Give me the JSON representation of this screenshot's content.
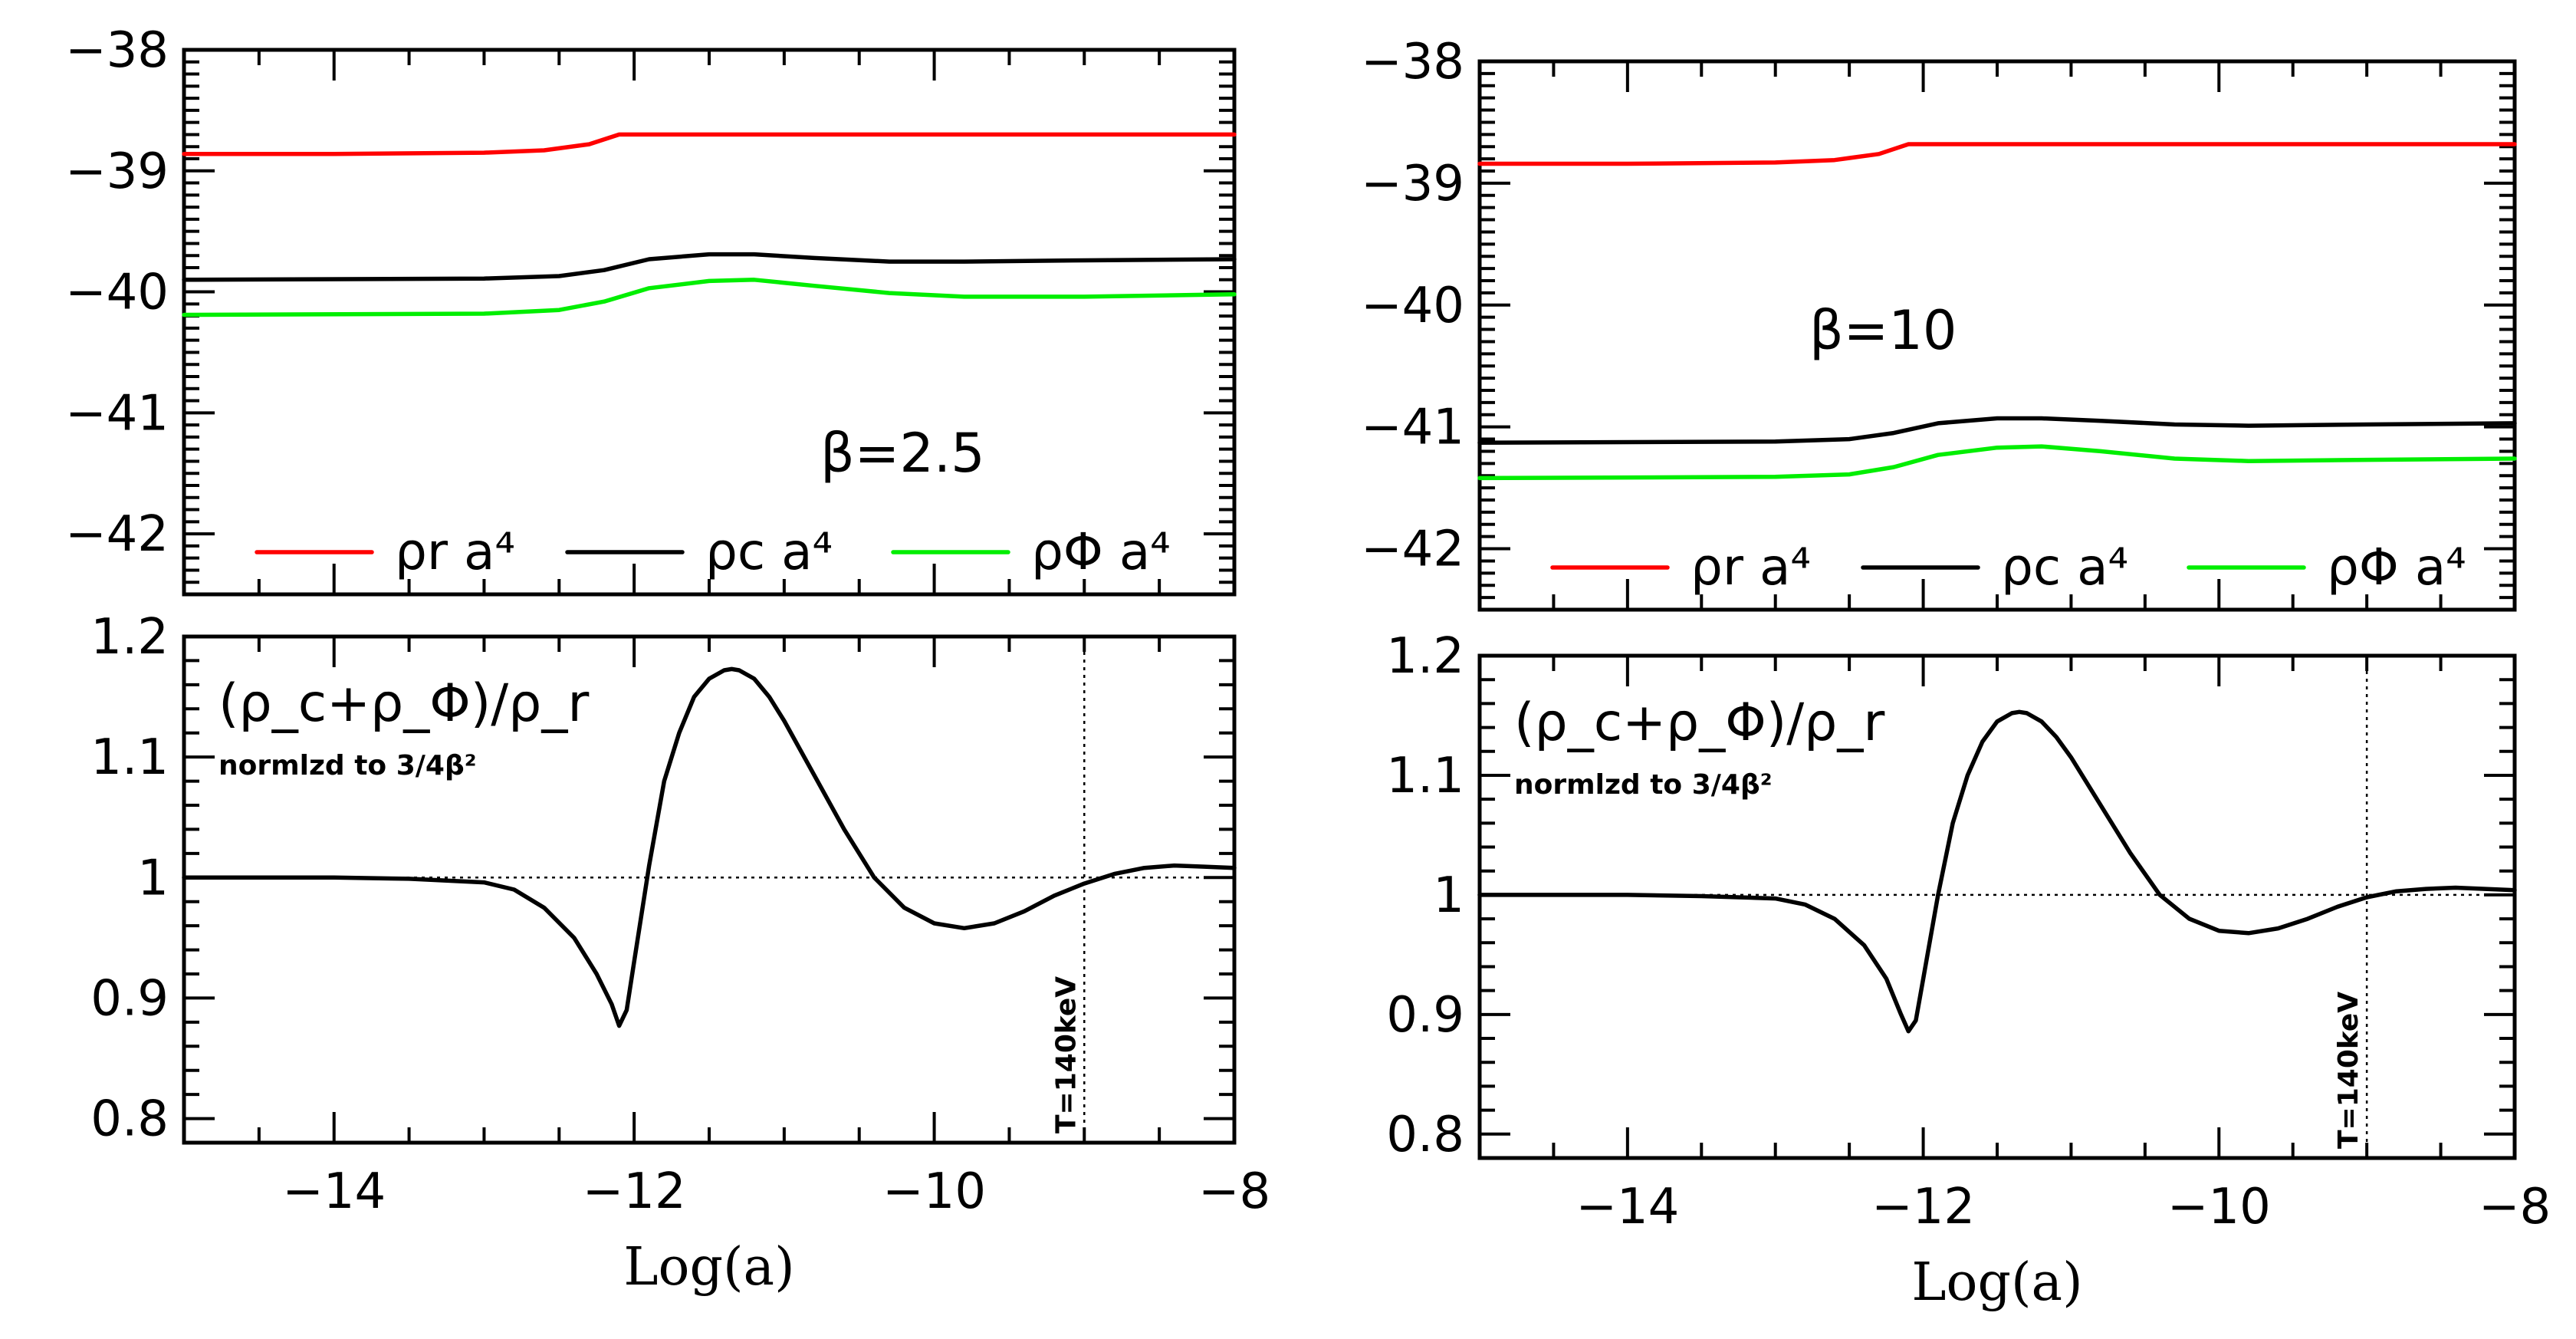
{
  "chart_data": [
    {
      "type": "line",
      "panel": "left-top",
      "title": "",
      "xlabel": "",
      "ylabel": "",
      "xlim": [
        -15,
        -8
      ],
      "ylim": [
        -42.5,
        -38
      ],
      "yticks": [
        "-42",
        "-41",
        "-40",
        "-39",
        "-38"
      ],
      "annotation": "β=2.5",
      "series": [
        {
          "name": "ρ_r a^4",
          "color": "#ff0000",
          "x": [
            -15,
            -14,
            -13,
            -12.6,
            -12.3,
            -12.1,
            -11.5,
            -10,
            -9,
            -8
          ],
          "y": [
            -38.86,
            -38.86,
            -38.85,
            -38.83,
            -38.78,
            -38.7,
            -38.7,
            -38.7,
            -38.7,
            -38.7
          ]
        },
        {
          "name": "ρ_c a^4",
          "color": "#000000",
          "x": [
            -15,
            -13,
            -12.5,
            -12.2,
            -11.9,
            -11.5,
            -11.2,
            -10.8,
            -10.3,
            -9.8,
            -9,
            -8
          ],
          "y": [
            -39.9,
            -39.89,
            -39.87,
            -39.82,
            -39.73,
            -39.69,
            -39.69,
            -39.72,
            -39.75,
            -39.75,
            -39.74,
            -39.73
          ]
        },
        {
          "name": "ρ_Φ a^4",
          "color": "#00ee00",
          "x": [
            -15,
            -13,
            -12.5,
            -12.2,
            -11.9,
            -11.5,
            -11.2,
            -10.8,
            -10.3,
            -9.8,
            -9,
            -8
          ],
          "y": [
            -40.19,
            -40.18,
            -40.15,
            -40.08,
            -39.97,
            -39.91,
            -39.9,
            -39.95,
            -40.01,
            -40.04,
            -40.04,
            -40.02
          ]
        }
      ],
      "legend": [
        "ρ_r a^4",
        "ρ_c a^4",
        "ρ_Φ a^4"
      ]
    },
    {
      "type": "line",
      "panel": "left-bottom",
      "xlabel": "Log(a)",
      "ylabel": "",
      "xlim": [
        -15,
        -8
      ],
      "ylim": [
        0.78,
        1.2
      ],
      "yticks": [
        "0.8",
        "0.9",
        "1",
        "1.1",
        "1.2"
      ],
      "xticks": [
        "−14",
        "−12",
        "−10",
        "−8"
      ],
      "annotation": "(ρ_c+ρ_Φ)/ρ_r",
      "note": "normlzd to 3/4β²",
      "vline_label": "T=140keV",
      "vline_x": -9.0,
      "hline_y": 1.0,
      "series": [
        {
          "name": "(ρ_c+ρ_Φ)/ρ_r",
          "color": "#000000",
          "x": [
            -15,
            -14,
            -13.5,
            -13,
            -12.8,
            -12.6,
            -12.4,
            -12.25,
            -12.15,
            -12.1,
            -12.05,
            -12.0,
            -11.9,
            -11.8,
            -11.7,
            -11.6,
            -11.5,
            -11.4,
            -11.35,
            -11.3,
            -11.2,
            -11.1,
            -11.0,
            -10.8,
            -10.6,
            -10.4,
            -10.2,
            -10.0,
            -9.8,
            -9.6,
            -9.4,
            -9.2,
            -9.0,
            -8.8,
            -8.6,
            -8.4,
            -8.2,
            -8.0
          ],
          "y": [
            1.0,
            1.0,
            0.999,
            0.996,
            0.99,
            0.975,
            0.95,
            0.92,
            0.895,
            0.877,
            0.89,
            0.93,
            1.01,
            1.08,
            1.12,
            1.15,
            1.165,
            1.172,
            1.173,
            1.172,
            1.165,
            1.15,
            1.13,
            1.085,
            1.04,
            1.0,
            0.975,
            0.962,
            0.958,
            0.962,
            0.972,
            0.985,
            0.995,
            1.003,
            1.008,
            1.01,
            1.009,
            1.008
          ]
        }
      ]
    },
    {
      "type": "line",
      "panel": "right-top",
      "xlabel": "",
      "ylabel": "",
      "xlim": [
        -15,
        -8
      ],
      "ylim": [
        -42.5,
        -38
      ],
      "yticks": [
        "-42",
        "-41",
        "-40",
        "-39",
        "-38"
      ],
      "annotation": "β=10",
      "series": [
        {
          "name": "ρ_r a^4",
          "color": "#ff0000",
          "x": [
            -15,
            -14,
            -13,
            -12.6,
            -12.3,
            -12.1,
            -11.5,
            -10,
            -9,
            -8
          ],
          "y": [
            -38.84,
            -38.84,
            -38.83,
            -38.81,
            -38.76,
            -38.68,
            -38.68,
            -38.68,
            -38.68,
            -38.68
          ]
        },
        {
          "name": "ρ_c a^4",
          "color": "#000000",
          "x": [
            -15,
            -13,
            -12.5,
            -12.2,
            -11.9,
            -11.5,
            -11.2,
            -10.8,
            -10.3,
            -9.8,
            -9,
            -8
          ],
          "y": [
            -41.13,
            -41.12,
            -41.1,
            -41.05,
            -40.97,
            -40.93,
            -40.93,
            -40.95,
            -40.98,
            -40.99,
            -40.98,
            -40.97
          ]
        },
        {
          "name": "ρ_Φ a^4",
          "color": "#00ee00",
          "x": [
            -15,
            -13,
            -12.5,
            -12.2,
            -11.9,
            -11.5,
            -11.2,
            -10.8,
            -10.3,
            -9.8,
            -9,
            -8
          ],
          "y": [
            -41.42,
            -41.41,
            -41.39,
            -41.33,
            -41.23,
            -41.17,
            -41.16,
            -41.2,
            -41.26,
            -41.28,
            -41.27,
            -41.26
          ]
        }
      ],
      "legend": [
        "ρ_r a^4",
        "ρ_c a^4",
        "ρ_Φ a^4"
      ]
    },
    {
      "type": "line",
      "panel": "right-bottom",
      "xlabel": "Log(a)",
      "ylabel": "",
      "xlim": [
        -15,
        -8
      ],
      "ylim": [
        0.78,
        1.2
      ],
      "yticks": [
        "0.8",
        "0.9",
        "1",
        "1.1",
        "1.2"
      ],
      "xticks": [
        "−14",
        "−12",
        "−10",
        "−8"
      ],
      "annotation": "(ρ_c+ρ_Φ)/ρ_r",
      "note": "normlzd to 3/4β²",
      "vline_label": "T=140keV",
      "vline_x": -9.0,
      "hline_y": 1.0,
      "series": [
        {
          "name": "(ρ_c+ρ_Φ)/ρ_r",
          "color": "#000000",
          "x": [
            -15,
            -14,
            -13.5,
            -13,
            -12.8,
            -12.6,
            -12.4,
            -12.25,
            -12.15,
            -12.1,
            -12.05,
            -12.0,
            -11.9,
            -11.8,
            -11.7,
            -11.6,
            -11.5,
            -11.4,
            -11.35,
            -11.3,
            -11.2,
            -11.1,
            -11.0,
            -10.8,
            -10.6,
            -10.4,
            -10.2,
            -10.0,
            -9.8,
            -9.6,
            -9.4,
            -9.2,
            -9.0,
            -8.8,
            -8.6,
            -8.4,
            -8.2,
            -8.0
          ],
          "y": [
            1.0,
            1.0,
            0.999,
            0.997,
            0.992,
            0.98,
            0.958,
            0.93,
            0.9,
            0.886,
            0.895,
            0.93,
            1.0,
            1.06,
            1.1,
            1.128,
            1.145,
            1.152,
            1.153,
            1.152,
            1.145,
            1.132,
            1.115,
            1.075,
            1.035,
            1.0,
            0.98,
            0.97,
            0.968,
            0.972,
            0.98,
            0.99,
            0.998,
            1.003,
            1.005,
            1.006,
            1.005,
            1.004
          ]
        }
      ]
    }
  ]
}
